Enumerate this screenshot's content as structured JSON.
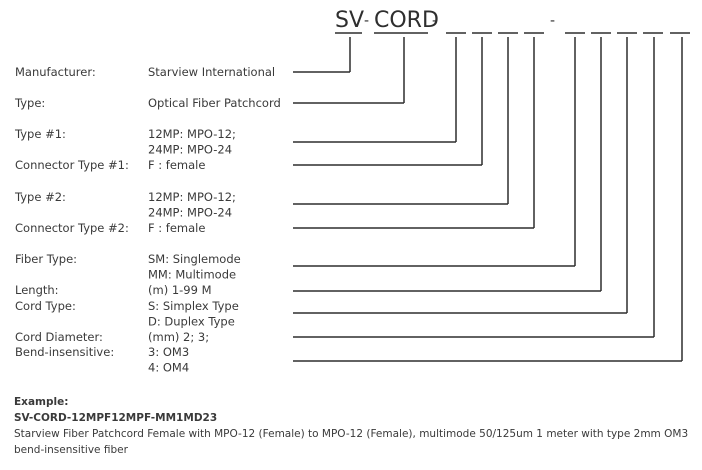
{
  "code": {
    "brand": "SV",
    "sep1": "-",
    "model": "CORD",
    "sep2": "-",
    "sep3": "-",
    "slot_count_a": 4,
    "slot_count_b": 5
  },
  "rows": [
    {
      "label": "Manufacturer:",
      "value": [
        "Starview International"
      ]
    },
    {
      "label": "Type:",
      "value": [
        "Optical Fiber Patchcord"
      ]
    },
    {
      "label": "Type #1:",
      "value": [
        "12MP: MPO-12;",
        "24MP: MPO-24"
      ]
    },
    {
      "label": "Connector Type #1:",
      "value": [
        "F : female"
      ]
    },
    {
      "label": "Type #2:",
      "value": [
        "12MP: MPO-12;",
        "24MP: MPO-24"
      ]
    },
    {
      "label": "Connector Type #2:",
      "value": [
        "F : female"
      ]
    },
    {
      "label": "Fiber Type:",
      "value": [
        "SM: Singlemode",
        "MM: Multimode"
      ]
    },
    {
      "label": "Length:",
      "value": [
        "(m)  1-99 M"
      ]
    },
    {
      "label": "Cord Type:",
      "value": [
        "S: Simplex Type",
        "D: Duplex Type"
      ]
    },
    {
      "label": "Cord Diameter:",
      "value": [
        "(mm)  2; 3;"
      ]
    },
    {
      "label": "Bend-insensitive:",
      "value": [
        "3: OM3",
        "4: OM4"
      ]
    }
  ],
  "example": {
    "title": "Example:",
    "code": "SV-CORD-12MPF12MPF-MM1MD23",
    "description": "Starview Fiber Patchcord Female with MPO-12 (Female) to MPO-12 (Female), multimode 50/125um 1 meter with type 2mm OM3 bend-insensitive fiber"
  },
  "colors": {
    "text": "#3a3a3a",
    "line": "#2e2e2e"
  }
}
